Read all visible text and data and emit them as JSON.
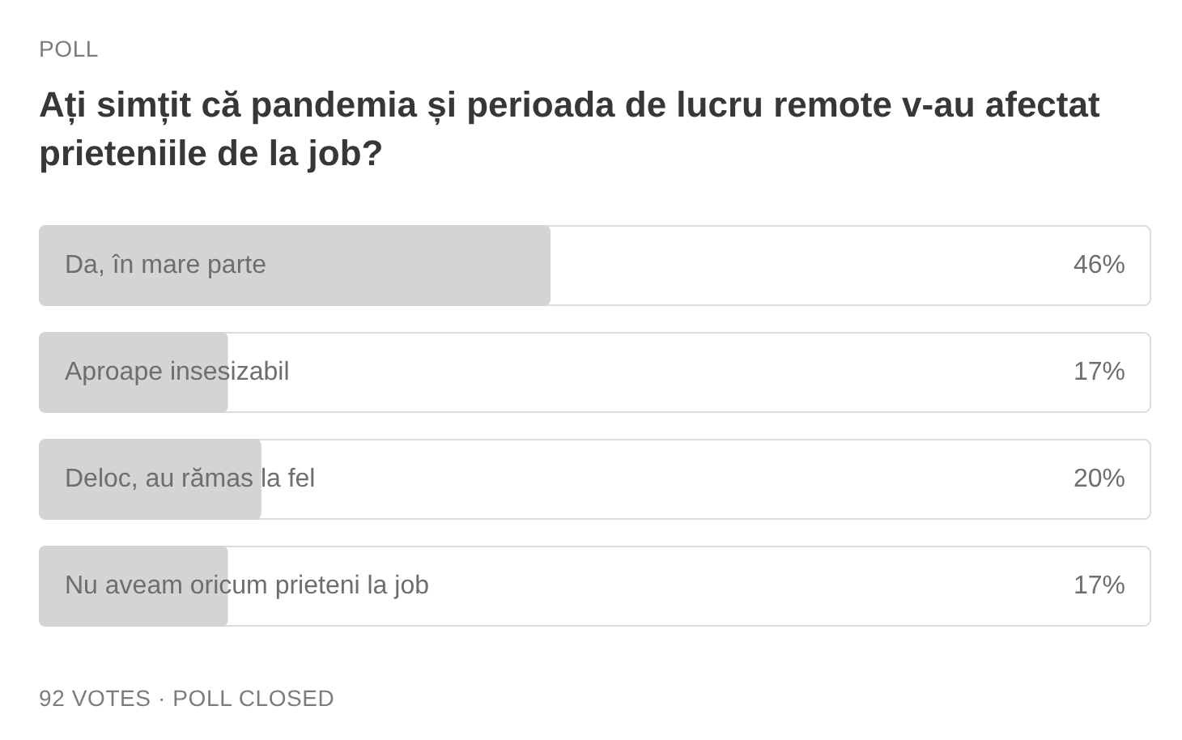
{
  "chart_data": {
    "type": "bar",
    "orientation": "horizontal",
    "title": "Ați simțit că pandemia și perioada de lucru remote v-au afectat prieteniile de la job?",
    "annotations": [
      "POLL",
      "92 VOTES · POLL CLOSED"
    ],
    "categories": [
      "Da, în mare parte",
      "Aproape insesizabil",
      "Deloc, au rămas la fel",
      "Nu aveam oricum prieteni la job"
    ],
    "values": [
      46,
      17,
      20,
      17
    ],
    "value_labels": [
      "46%",
      "17%",
      "20%",
      "17%"
    ],
    "color": "#d4d4d4",
    "xlim": [
      0,
      100
    ],
    "tick_labels": false,
    "grid": false,
    "legend": false
  }
}
